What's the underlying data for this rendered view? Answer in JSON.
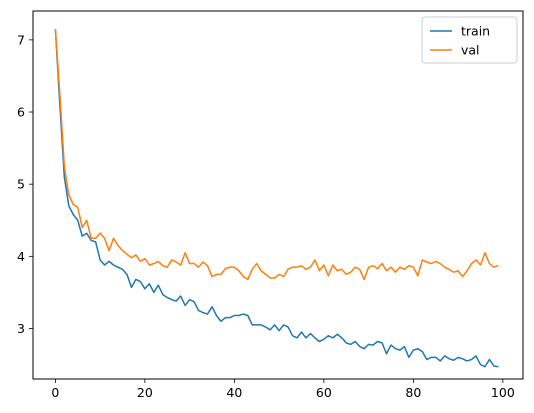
{
  "chart_data": {
    "type": "line",
    "title": "",
    "xlabel": "",
    "ylabel": "",
    "xlim": [
      -5,
      104.5
    ],
    "ylim": [
      2.3,
      7.4
    ],
    "xticks": [
      0,
      20,
      40,
      60,
      80,
      100
    ],
    "yticks": [
      3,
      4,
      5,
      6,
      7
    ],
    "grid": false,
    "legend": {
      "position": "top-right",
      "entries": [
        "train",
        "val"
      ]
    },
    "colors": {
      "train": "#1f77b4",
      "val": "#ff7f0e"
    },
    "x": [
      0,
      1,
      2,
      3,
      4,
      5,
      6,
      7,
      8,
      9,
      10,
      11,
      12,
      13,
      14,
      15,
      16,
      17,
      18,
      19,
      20,
      21,
      22,
      23,
      24,
      25,
      26,
      27,
      28,
      29,
      30,
      31,
      32,
      33,
      34,
      35,
      36,
      37,
      38,
      39,
      40,
      41,
      42,
      43,
      44,
      45,
      46,
      47,
      48,
      49,
      50,
      51,
      52,
      53,
      54,
      55,
      56,
      57,
      58,
      59,
      60,
      61,
      62,
      63,
      64,
      65,
      66,
      67,
      68,
      69,
      70,
      71,
      72,
      73,
      74,
      75,
      76,
      77,
      78,
      79,
      80,
      81,
      82,
      83,
      84,
      85,
      86,
      87,
      88,
      89,
      90,
      91,
      92,
      93,
      94,
      95,
      96,
      97,
      98,
      99
    ],
    "series": [
      {
        "name": "train",
        "values": [
          7.15,
          6.1,
          5.1,
          4.7,
          4.58,
          4.5,
          4.28,
          4.32,
          4.22,
          4.2,
          3.95,
          3.88,
          3.93,
          3.88,
          3.85,
          3.82,
          3.75,
          3.57,
          3.68,
          3.65,
          3.55,
          3.62,
          3.5,
          3.6,
          3.47,
          3.43,
          3.4,
          3.38,
          3.45,
          3.32,
          3.4,
          3.37,
          3.25,
          3.22,
          3.2,
          3.3,
          3.18,
          3.1,
          3.15,
          3.15,
          3.18,
          3.18,
          3.2,
          3.18,
          3.05,
          3.05,
          3.05,
          3.02,
          2.98,
          3.05,
          2.97,
          3.05,
          3.02,
          2.9,
          2.87,
          2.95,
          2.87,
          2.93,
          2.87,
          2.82,
          2.85,
          2.9,
          2.87,
          2.92,
          2.87,
          2.8,
          2.78,
          2.82,
          2.75,
          2.72,
          2.78,
          2.77,
          2.82,
          2.8,
          2.65,
          2.77,
          2.72,
          2.7,
          2.75,
          2.6,
          2.7,
          2.72,
          2.68,
          2.57,
          2.6,
          2.6,
          2.55,
          2.62,
          2.58,
          2.56,
          2.6,
          2.58,
          2.55,
          2.57,
          2.62,
          2.5,
          2.47,
          2.57,
          2.48,
          2.47
        ]
      },
      {
        "name": "val",
        "values": [
          7.15,
          6.25,
          5.25,
          4.85,
          4.72,
          4.68,
          4.4,
          4.5,
          4.25,
          4.25,
          4.32,
          4.25,
          4.08,
          4.25,
          4.15,
          4.08,
          4.03,
          3.98,
          4.02,
          3.93,
          3.97,
          3.88,
          3.9,
          3.93,
          3.87,
          3.85,
          3.95,
          3.92,
          3.88,
          4.05,
          3.9,
          3.9,
          3.85,
          3.92,
          3.87,
          3.72,
          3.75,
          3.75,
          3.83,
          3.85,
          3.85,
          3.8,
          3.72,
          3.68,
          3.82,
          3.9,
          3.8,
          3.75,
          3.7,
          3.7,
          3.75,
          3.72,
          3.82,
          3.85,
          3.85,
          3.87,
          3.82,
          3.85,
          3.95,
          3.8,
          3.88,
          3.73,
          3.88,
          3.8,
          3.82,
          3.75,
          3.78,
          3.85,
          3.82,
          3.68,
          3.85,
          3.87,
          3.83,
          3.9,
          3.8,
          3.85,
          3.78,
          3.85,
          3.82,
          3.87,
          3.85,
          3.73,
          3.95,
          3.92,
          3.9,
          3.93,
          3.9,
          3.85,
          3.82,
          3.78,
          3.8,
          3.72,
          3.8,
          3.9,
          3.95,
          3.88,
          4.05,
          3.9,
          3.85,
          3.87
        ]
      }
    ]
  }
}
